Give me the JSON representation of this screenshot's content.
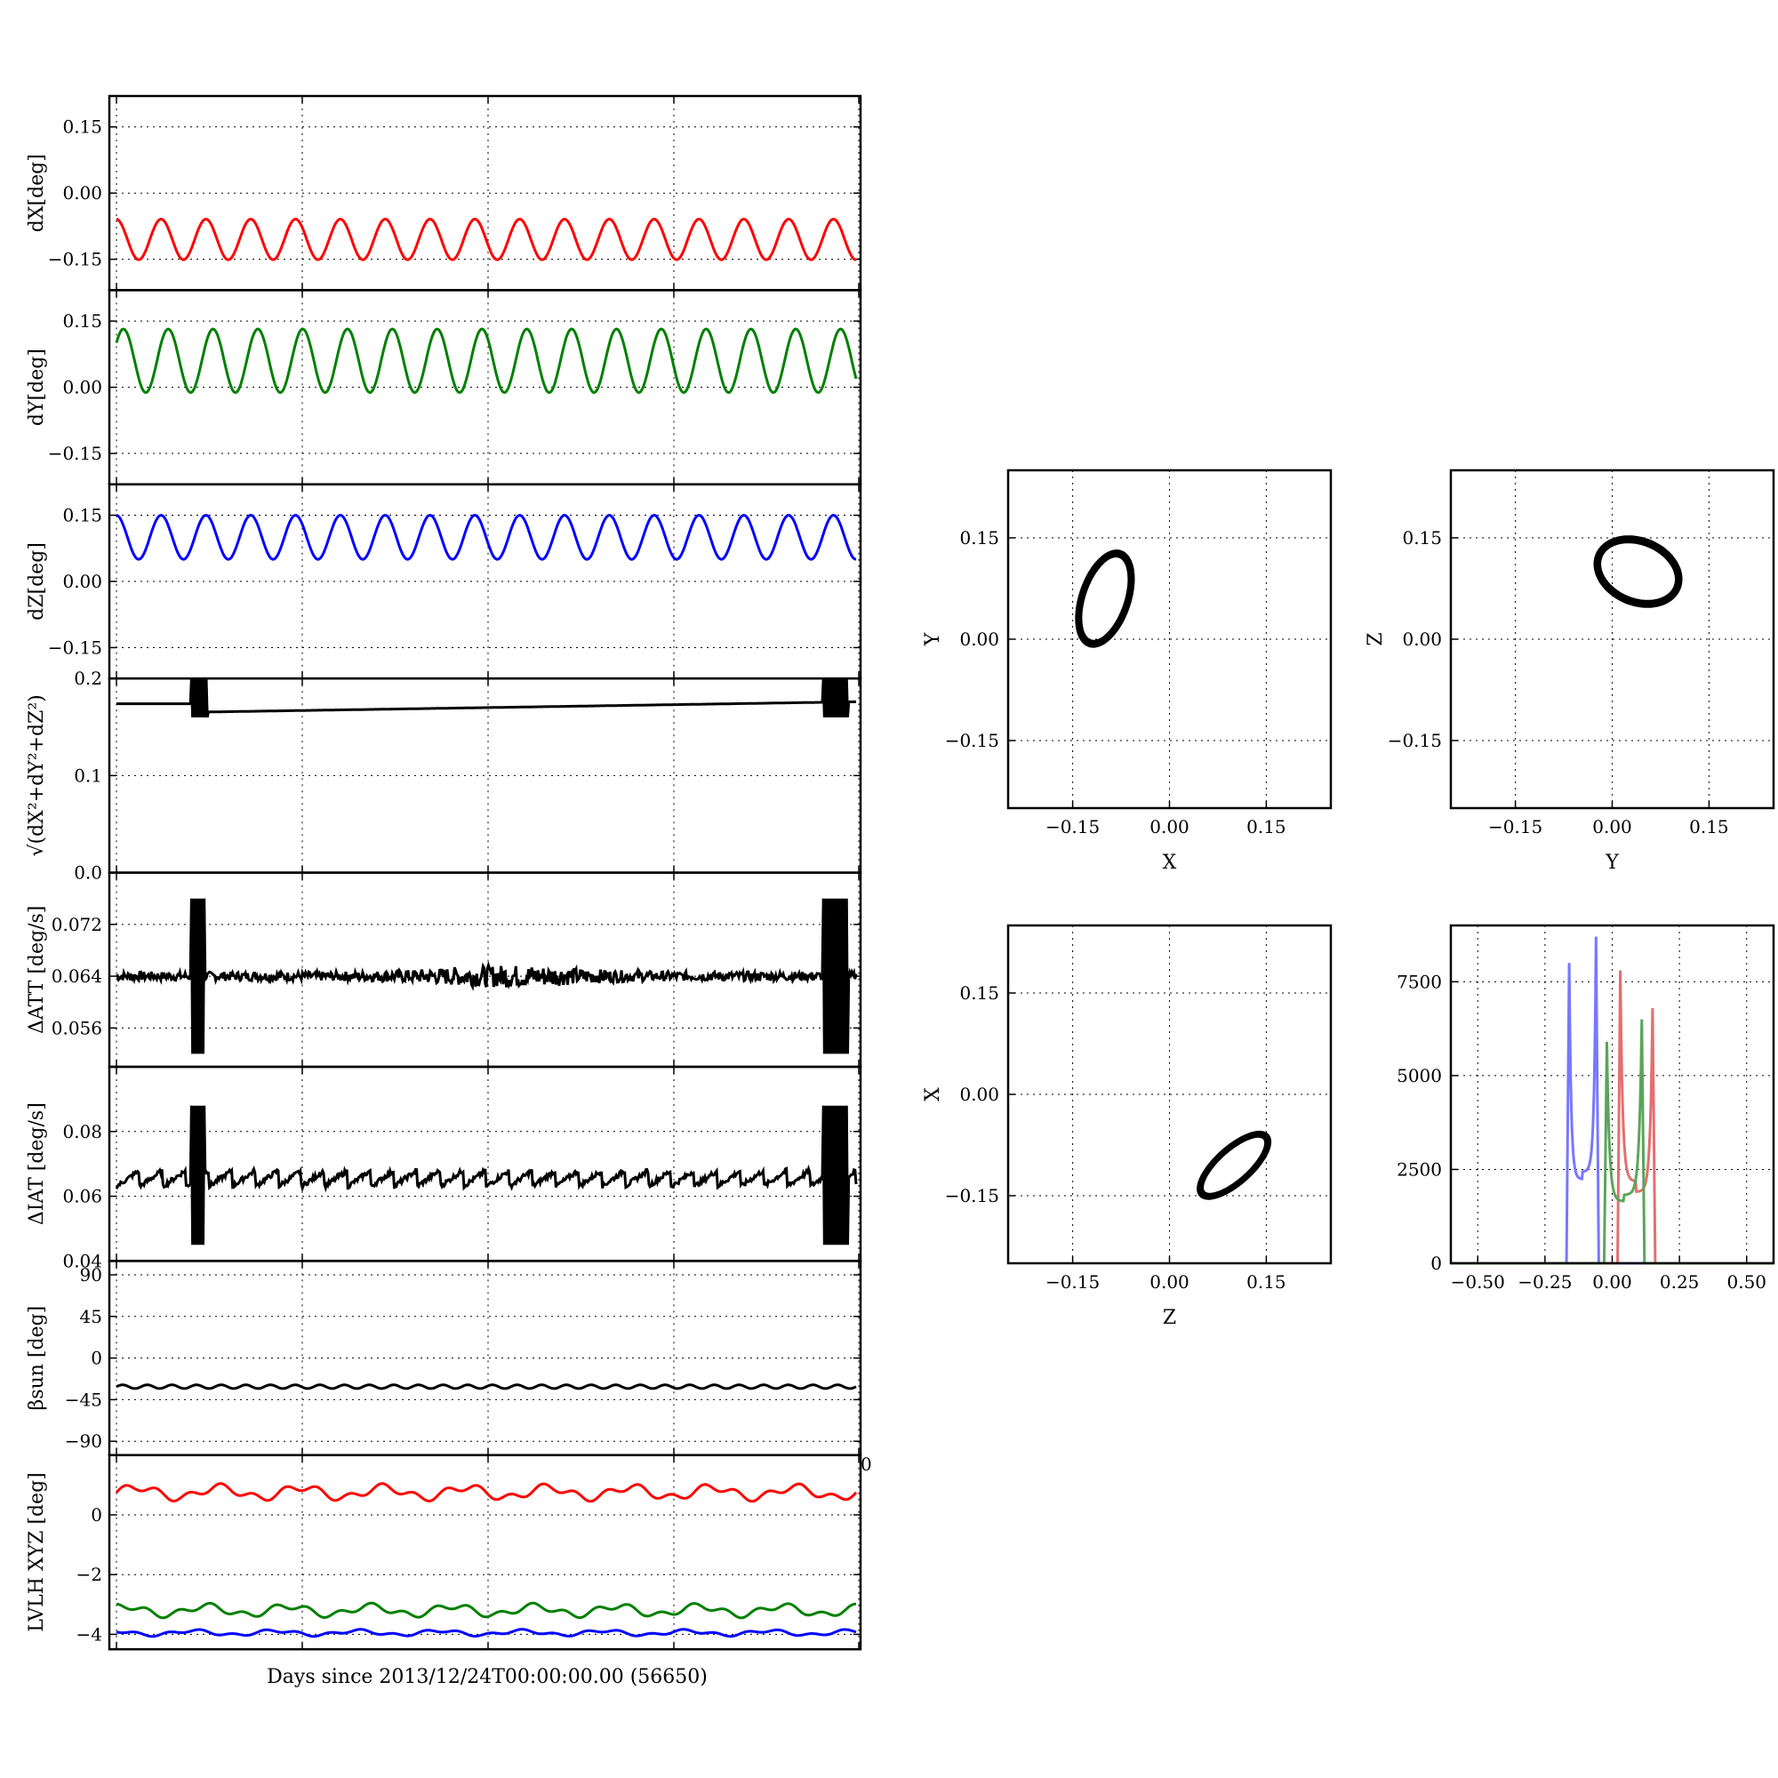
{
  "chart_data": [
    {
      "id": "dx",
      "type": "line",
      "ylabel": "dX[deg]",
      "ylim": [
        -0.22,
        0.22
      ],
      "yticks": [
        "0.15",
        "0.00",
        "−0.15"
      ],
      "ytick_values": [
        0.15,
        0,
        -0.15
      ],
      "series": [
        {
          "color": "#ff0000",
          "kind": "sine",
          "mean": -0.105,
          "amp": 0.046,
          "cycles": 16.5,
          "phase": 1.6
        }
      ]
    },
    {
      "id": "dy",
      "type": "line",
      "ylabel": "dY[deg]",
      "ylim": [
        -0.22,
        0.22
      ],
      "yticks": [
        "0.15",
        "0.00",
        "−0.15"
      ],
      "ytick_values": [
        0.15,
        0,
        -0.15
      ],
      "series": [
        {
          "color": "#008000",
          "kind": "sine",
          "mean": 0.06,
          "amp": 0.072,
          "cycles": 16.5,
          "phase": 0.6
        }
      ]
    },
    {
      "id": "dz",
      "type": "line",
      "ylabel": "dZ[deg]",
      "ylim": [
        -0.22,
        0.22
      ],
      "yticks": [
        "0.15",
        "0.00",
        "−0.15"
      ],
      "ytick_values": [
        0.15,
        0,
        -0.15
      ],
      "series": [
        {
          "color": "#0000ff",
          "kind": "sine",
          "mean": 0.1,
          "amp": 0.05,
          "cycles": 16.5,
          "phase": 1.6
        }
      ]
    },
    {
      "id": "mag",
      "type": "line",
      "ylabel": "√(dX²+dY²+dZ²)",
      "ylim": [
        0.0,
        0.2
      ],
      "yticks": [
        "0.2",
        "0.1",
        "0.0"
      ],
      "ytick_values": [
        0.2,
        0.1,
        0.0
      ],
      "series": [
        {
          "color": "#000000",
          "kind": "mag"
        }
      ]
    },
    {
      "id": "datt",
      "type": "line",
      "ylabel": "ΔATT [deg/s]",
      "ylim": [
        0.05,
        0.08
      ],
      "yticks": [
        "0.072",
        "0.064",
        "0.056"
      ],
      "ytick_values": [
        0.072,
        0.064,
        0.056
      ],
      "series": [
        {
          "color": "#000000",
          "kind": "noise",
          "mean": 0.064,
          "noise": 0.0007
        }
      ]
    },
    {
      "id": "diat",
      "type": "line",
      "ylabel": "ΔIAT [deg/s]",
      "ylim": [
        0.04,
        0.1
      ],
      "yticks": [
        "0.08",
        "0.06",
        "0.04"
      ],
      "ytick_values": [
        0.08,
        0.06,
        0.04
      ],
      "series": [
        {
          "color": "#000000",
          "kind": "saw",
          "mean": 0.065,
          "noise": 0.0015
        }
      ]
    },
    {
      "id": "beta",
      "type": "line",
      "ylabel": "βsun [deg]",
      "ylim": [
        -105,
        105
      ],
      "yticks": [
        "90",
        "45",
        "0",
        "−45",
        "−90"
      ],
      "ytick_values": [
        90,
        45,
        0,
        -45,
        -90
      ],
      "series": [
        {
          "color": "#000000",
          "kind": "sine",
          "mean": -31,
          "amp": 2,
          "cycles": 30,
          "phase": 0
        }
      ]
    },
    {
      "id": "lvlh",
      "type": "line",
      "ylabel": "LVLH XYZ [deg]",
      "ylim": [
        -4.5,
        2.0
      ],
      "yticks": [
        "0",
        "−2",
        "−4"
      ],
      "ytick_values": [
        0,
        -2,
        -4
      ],
      "xlabel": "Days since 2013/12/24T00:00:00.00 (56650)",
      "series": [
        {
          "color": "#ff0000",
          "kind": "wander",
          "mean": 0.75,
          "amp": 0.3
        },
        {
          "color": "#008000",
          "kind": "wander",
          "mean": -3.2,
          "amp": 0.25
        },
        {
          "color": "#0000ff",
          "kind": "wander",
          "mean": -3.95,
          "amp": 0.12
        }
      ]
    },
    {
      "id": "xy",
      "type": "scatter",
      "xlabel": "X",
      "ylabel": "Y",
      "xlim": [
        -0.25,
        0.25
      ],
      "ylim": [
        -0.25,
        0.25
      ],
      "ticks": [
        "−0.15",
        "0.00",
        "0.15"
      ],
      "tick_values": [
        -0.15,
        0,
        0.15
      ],
      "ellipse": {
        "cx": -0.1,
        "cy": 0.06,
        "rx": 0.07,
        "ry": 0.035,
        "angle_deg": 70
      }
    },
    {
      "id": "yz",
      "type": "scatter",
      "xlabel": "Y",
      "ylabel": "Z",
      "xlim": [
        -0.25,
        0.25
      ],
      "ylim": [
        -0.25,
        0.25
      ],
      "ticks": [
        "−0.15",
        "0.00",
        "0.15"
      ],
      "tick_values": [
        -0.15,
        0,
        0.15
      ],
      "ellipse": {
        "cx": 0.04,
        "cy": 0.1,
        "rx": 0.065,
        "ry": 0.045,
        "angle_deg": -20
      }
    },
    {
      "id": "zx",
      "type": "scatter",
      "xlabel": "Z",
      "ylabel": "X",
      "xlim": [
        -0.25,
        0.25
      ],
      "ylim": [
        -0.25,
        0.25
      ],
      "ticks": [
        "−0.15",
        "0.00",
        "0.15"
      ],
      "tick_values": [
        -0.15,
        0,
        0.15
      ],
      "ellipse": {
        "cx": 0.1,
        "cy": -0.105,
        "rx": 0.065,
        "ry": 0.025,
        "angle_deg": 40
      }
    },
    {
      "id": "hist",
      "type": "histogram",
      "xlim": [
        -0.6,
        0.6
      ],
      "ylim": [
        0,
        9000
      ],
      "xticks": [
        "−0.50",
        "−0.25",
        "0.00",
        "0.25",
        "0.50"
      ],
      "xtick_values": [
        -0.5,
        -0.25,
        0,
        0.25,
        0.5
      ],
      "yticks": [
        "7500",
        "5000",
        "2500",
        "0"
      ],
      "ytick_values": [
        7500,
        5000,
        2500,
        0
      ],
      "series": [
        {
          "color": "#7777ff",
          "range": [
            -0.16,
            -0.06
          ],
          "peaks": [
            8000,
            8700
          ]
        },
        {
          "color": "#e46f6f",
          "range": [
            0.03,
            0.15
          ],
          "peaks": [
            7800,
            6800
          ]
        },
        {
          "color": "#5aa55a",
          "range": [
            -0.02,
            0.11
          ],
          "peaks": [
            5900,
            6500
          ]
        }
      ]
    }
  ],
  "stray_tick_label": "0"
}
